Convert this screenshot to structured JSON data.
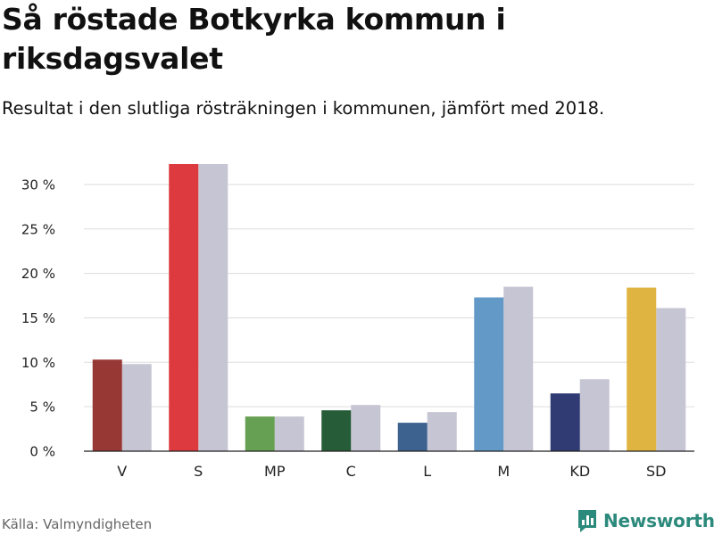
{
  "header": {
    "title": "Så röstade Botkyrka kommun i riksdagsvalet",
    "subtitle": "Resultat i den slutliga rösträkningen i kommunen, jämfört med 2018."
  },
  "footer": {
    "source": "Källa: Valmyndigheten",
    "brand": "Newsworthy",
    "brand_icon": "bar-chart-logo-icon",
    "brand_color": "#2c8a7c"
  },
  "chart_data": {
    "type": "bar",
    "categories": [
      "V",
      "S",
      "MP",
      "C",
      "L",
      "M",
      "KD",
      "SD"
    ],
    "series": [
      {
        "values": [
          10.3,
          32.3,
          3.9,
          4.6,
          3.2,
          17.3,
          6.5,
          18.4
        ],
        "colors": [
          "#983835",
          "#dd3a3f",
          "#66a052",
          "#265d38",
          "#3e6290",
          "#6399c7",
          "#2f3b72",
          "#e0b441"
        ]
      },
      {
        "values": [
          9.8,
          32.3,
          3.9,
          5.2,
          4.4,
          18.5,
          8.1,
          16.1
        ],
        "color": "#c6c5d3"
      }
    ],
    "yticks": [
      0,
      5,
      10,
      15,
      20,
      25,
      30
    ],
    "ytick_labels": [
      "0 %",
      "5 %",
      "10 %",
      "15 %",
      "20 %",
      "25 %",
      "30 %"
    ],
    "ylim": [
      0,
      32.5
    ],
    "grid": true,
    "xlabel": "",
    "ylabel": ""
  }
}
